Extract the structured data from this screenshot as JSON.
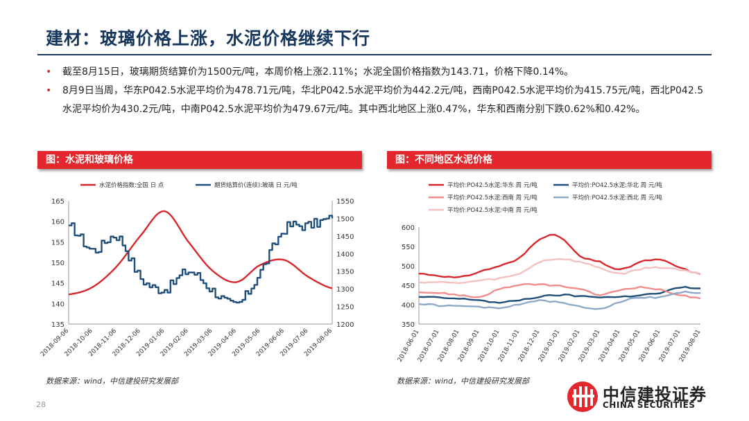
{
  "page": {
    "title": "建材：玻璃价格上涨，水泥价格继续下行",
    "bullets": [
      "截至8月15日，玻璃期货结算价为1500元/吨，本周价格上涨2.11%；水泥全国价格指数为143.71，价格下降0.14%。",
      "8月9日当周，华东P042.5水泥平均价为478.71元/吨，华北P042.5水泥平均价为442.2元/吨，西南P042.5水泥平均价为415.75元/吨，西北P042.5水泥平均价为430.2元/吨，中南P042.5水泥平均价为479.67元/吨。其中西北地区上涨0.47%，华东和西南分别下跌0.62%和0.42%。"
    ],
    "page_number": "28"
  },
  "left_figure": {
    "banner": "图：水泥和玻璃价格",
    "source": "数据来源：wind，中信建投研究发展部"
  },
  "right_figure": {
    "banner": "图：不同地区水泥价格",
    "source": "数据来源：wind，中信建投研究发展部"
  },
  "logo": {
    "name_cn": "中信建投证券",
    "name_en": "CHINA SECURITIES"
  },
  "chart_data": [
    {
      "type": "line",
      "x": [
        "2018-09-06",
        "2018-10-06",
        "2018-11-06",
        "2018-12-06",
        "2019-01-06",
        "2019-02-06",
        "2019-03-06",
        "2019-04-06",
        "2019-05-06",
        "2019-06-06",
        "2019-07-06",
        "2019-08-06"
      ],
      "xlabels": [
        "2018-09-06",
        "2018-10-06",
        "2018-11-06",
        "2018-12-06",
        "2019-01-06",
        "2019-02-06",
        "2019-03-06",
        "2019-04-06",
        "2019-05-06",
        "2019-06-06",
        "2019-07-06",
        "2019-08-06"
      ],
      "ylim_left": [
        135,
        165
      ],
      "yticks_left": [
        "135",
        "140",
        "145",
        "150",
        "155",
        "160",
        "165"
      ],
      "ylim_right": [
        1200,
        1550
      ],
      "yticks_right": [
        "1200",
        "1250",
        "1300",
        "1350",
        "1400",
        "1450",
        "1500",
        "1550"
      ],
      "legend_position": "top",
      "series": [
        {
          "name": "水泥价格指数:全国 日 点",
          "color": "#d9262b",
          "axis": "left",
          "values": [
            142.2,
            144.0,
            149.0,
            156.5,
            162.5,
            155.0,
            148.0,
            145.2,
            149.4,
            150.6,
            146.5,
            143.7
          ]
        },
        {
          "name": "期货结算价(连续):玻璃 日 元/吨",
          "color": "#1f4e79",
          "axis": "right",
          "values": [
            1480,
            1410,
            1450,
            1330,
            1300,
            1350,
            1295,
            1255,
            1350,
            1470,
            1480,
            1500
          ]
        }
      ]
    },
    {
      "type": "line",
      "x": [
        "2018-06-01",
        "2018-07-01",
        "2018-08-01",
        "2018-09-01",
        "2018-10-01",
        "2018-11-01",
        "2018-12-01",
        "2019-01-01",
        "2019-02-01",
        "2019-03-01",
        "2019-04-01",
        "2019-05-01",
        "2019-06-01",
        "2019-07-01",
        "2019-08-01"
      ],
      "xlabels": [
        "2018-06-01",
        "2018-07-01",
        "2018-08-01",
        "2018-09-01",
        "2018-10-01",
        "2018-11-01",
        "2018-12-01",
        "2019-01-01",
        "2019-02-01",
        "2019-03-01",
        "2019-04-01",
        "2019-05-01",
        "2019-06-01",
        "2019-07-01",
        "2019-08-01"
      ],
      "ylim": [
        350,
        600
      ],
      "yticks": [
        "350",
        "400",
        "450",
        "500",
        "550",
        "600"
      ],
      "legend_position": "top",
      "series": [
        {
          "name": "平均价:PO42.5水泥:华东 周 元/吨",
          "color": "#d9262b",
          "values": [
            480,
            475,
            470,
            485,
            500,
            520,
            570,
            575,
            525,
            510,
            490,
            510,
            515,
            495,
            479
          ]
        },
        {
          "name": "平均价:PO42.5水泥:华北 周 元/吨",
          "color": "#1f4e79",
          "values": [
            420,
            418,
            415,
            412,
            405,
            412,
            420,
            425,
            422,
            420,
            420,
            425,
            430,
            444,
            442
          ]
        },
        {
          "name": "平均价:PO42.5水泥:西南 周 元/吨",
          "color": "#ef8c8c",
          "values": [
            432,
            430,
            425,
            420,
            440,
            450,
            452,
            448,
            440,
            425,
            438,
            445,
            438,
            425,
            416
          ]
        },
        {
          "name": "平均价:PO42.5水泥:西北 周 元/吨",
          "color": "#8ea9c8",
          "values": [
            402,
            398,
            396,
            395,
            390,
            402,
            410,
            405,
            395,
            390,
            408,
            418,
            420,
            432,
            430
          ]
        },
        {
          "name": "平均价:PO42.5水泥:中南 周 元/吨",
          "color": "#f5c0c0",
          "values": [
            458,
            458,
            456,
            462,
            468,
            480,
            510,
            518,
            510,
            495,
            480,
            492,
            496,
            490,
            480
          ]
        }
      ]
    }
  ]
}
